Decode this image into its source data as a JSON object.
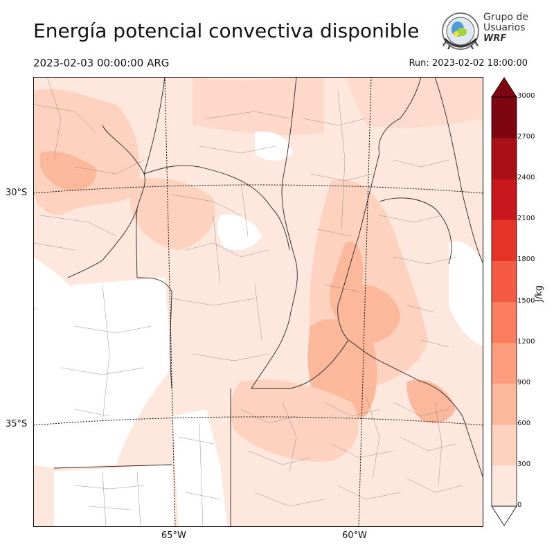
{
  "header": {
    "title": "Energía potencial convectiva disponible",
    "valid_time": "2023-02-03 00:00:00 ARG",
    "run_time": "Run: 2023-02-02 18:00:00"
  },
  "logo": {
    "line1": "Grupo de",
    "line2": "Usuarios",
    "line3": "WRF"
  },
  "map": {
    "latitude_labels": [
      "30°S",
      "35°S"
    ],
    "longitude_labels": [
      "65°W",
      "60°W"
    ]
  },
  "colorbar": {
    "unit": "J/kg",
    "ticks": [
      "0",
      "300",
      "600",
      "900",
      "1200",
      "1500",
      "1800",
      "2100",
      "2400",
      "2700",
      "3000"
    ],
    "colors": [
      "#fee8de",
      "#fdd2bf",
      "#fcb89b",
      "#fc9d7e",
      "#fb7d5f",
      "#f55a44",
      "#e63328",
      "#c8181e",
      "#a90f15",
      "#7e0610"
    ]
  }
}
